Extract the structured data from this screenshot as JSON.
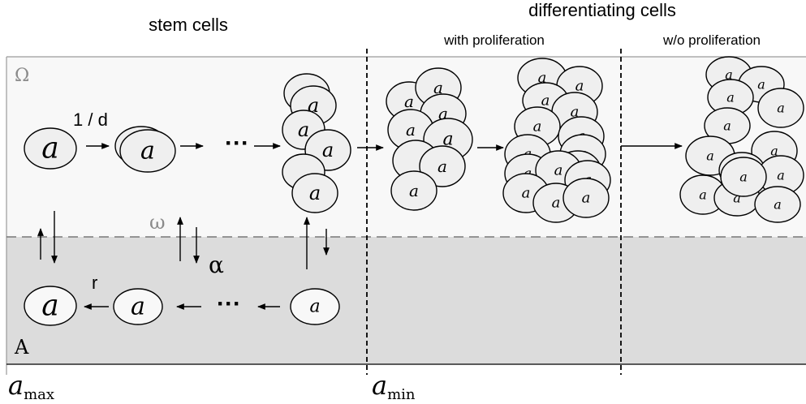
{
  "headers": {
    "stem_cells": "stem cells",
    "differentiating_cells": "differentiating cells",
    "with_proliferation": "with proliferation",
    "without_proliferation": "w/o proliferation"
  },
  "regions": {
    "omega_upper": "Ω",
    "omega_lower": "ω",
    "a_region": "A"
  },
  "rates": {
    "division": "1 / d",
    "return": "r",
    "alpha": "α"
  },
  "ellipsis": "···",
  "cell_label": "a",
  "axis": {
    "left_main": "a",
    "left_sub": "max",
    "right_main": "a",
    "right_sub": "min"
  }
}
